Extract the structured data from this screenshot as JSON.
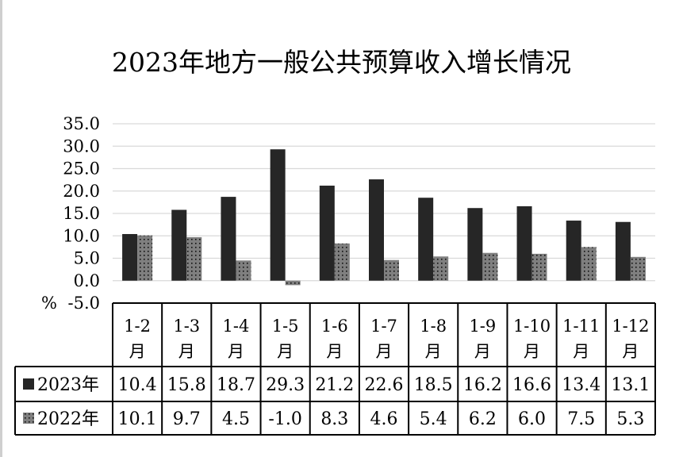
{
  "chart_data": {
    "type": "bar",
    "title": "2023年地方一般公共预算收入增长情况",
    "ylabel": "%",
    "ylim": [
      -5.0,
      35.0
    ],
    "yticks": [
      "35.0",
      "30.0",
      "25.0",
      "20.0",
      "15.0",
      "10.0",
      "5.0",
      "0.0",
      "-5.0"
    ],
    "grid": true,
    "legend": "table-rows",
    "categories": [
      "1-2月",
      "1-3月",
      "1-4月",
      "1-5月",
      "1-6月",
      "1-7月",
      "1-8月",
      "1-9月",
      "1-10月",
      "1-11月",
      "1-12月"
    ],
    "category_lines": [
      [
        "1-2",
        "月"
      ],
      [
        "1-3",
        "月"
      ],
      [
        "1-4",
        "月"
      ],
      [
        "1-5",
        "月"
      ],
      [
        "1-6",
        "月"
      ],
      [
        "1-7",
        "月"
      ],
      [
        "1-8",
        "月"
      ],
      [
        "1-9",
        "月"
      ],
      [
        "1-10",
        "月"
      ],
      [
        "1-11",
        "月"
      ],
      [
        "1-12",
        "月"
      ]
    ],
    "series": [
      {
        "name": "2023年",
        "color": "#262626",
        "pattern": "solid",
        "values": [
          10.4,
          15.8,
          18.7,
          29.3,
          21.2,
          22.6,
          18.5,
          16.2,
          16.6,
          13.4,
          13.1
        ],
        "labels": [
          "10.4",
          "15.8",
          "18.7",
          "29.3",
          "21.2",
          "22.6",
          "18.5",
          "16.2",
          "16.6",
          "13.4",
          "13.1"
        ]
      },
      {
        "name": "2022年",
        "color": "#7f7f7f",
        "pattern": "dotted",
        "values": [
          10.1,
          9.7,
          4.5,
          -1.0,
          8.3,
          4.6,
          5.4,
          6.2,
          6.0,
          7.5,
          5.3
        ],
        "labels": [
          "10.1",
          "9.7",
          "4.5",
          "-1.0",
          "8.3",
          "4.6",
          "5.4",
          "6.2",
          "6.0",
          "7.5",
          "5.3"
        ]
      }
    ]
  }
}
